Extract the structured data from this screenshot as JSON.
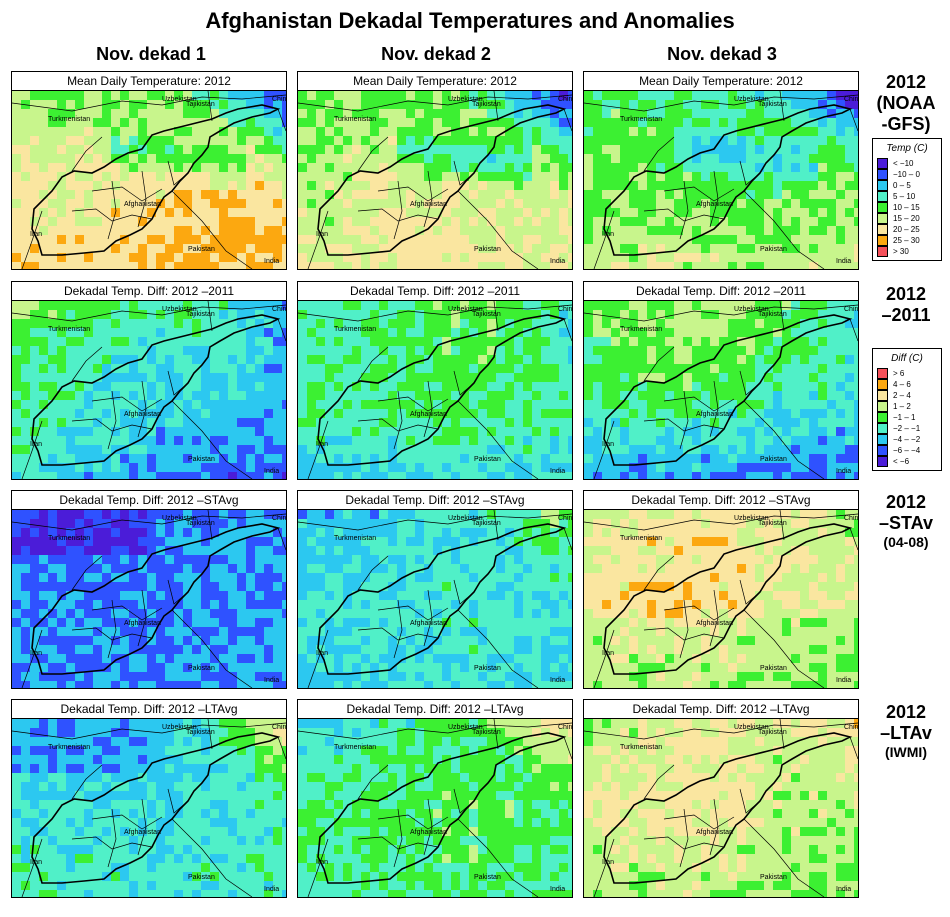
{
  "title": "Afghanistan Dekadal Temperatures and Anomalies",
  "columns": [
    "Nov. dekad 1",
    "Nov. dekad 2",
    "Nov. dekad 3"
  ],
  "rows": [
    {
      "label_big": [
        "2012",
        "(NOAA",
        "-GFS)"
      ],
      "label_small": [],
      "panel_title": "Mean Daily Temperature: 2012",
      "scheme": "temp",
      "fields": [
        "temp_d1",
        "temp_d2",
        "temp_d3"
      ]
    },
    {
      "label_big": [
        "2012",
        "–2011"
      ],
      "label_small": [],
      "panel_title": "Dekadal Temp. Diff:  2012 –2011",
      "scheme": "diff",
      "fields": [
        "d11_d1",
        "d11_d2",
        "d11_d3"
      ]
    },
    {
      "label_big": [
        "2012",
        "–STAv"
      ],
      "label_small": [
        "(04-08)"
      ],
      "panel_title": "Dekadal Temp. Diff:  2012 –STAvg",
      "scheme": "diff",
      "fields": [
        "dst_d1",
        "dst_d2",
        "dst_d3"
      ]
    },
    {
      "label_big": [
        "2012",
        "–LTAv"
      ],
      "label_small": [
        "(IWMI)"
      ],
      "panel_title": "Dekadal Temp. Diff:  2012 –LTAvg",
      "scheme": "diff",
      "fields": [
        "dlt_d1",
        "dlt_d2",
        "dlt_d3"
      ]
    }
  ],
  "map_labels": [
    "Uzbekistan",
    "Tajikistan",
    "China",
    "Turkmenistan",
    "Afghanistan",
    "Iran",
    "Pakistan",
    "India"
  ],
  "legend_temp": {
    "title": "Temp (C)",
    "items": [
      {
        "label": "< −10",
        "color": "#4b1cd8"
      },
      {
        "label": "−10 –  0",
        "color": "#2f52ff"
      },
      {
        "label": "0 –  5",
        "color": "#2cc8f0"
      },
      {
        "label": "5 – 10",
        "color": "#50f0c8"
      },
      {
        "label": "10 – 15",
        "color": "#3cf032"
      },
      {
        "label": "15 – 20",
        "color": "#c8f58c"
      },
      {
        "label": "20 – 25",
        "color": "#fae6a0"
      },
      {
        "label": "25 – 30",
        "color": "#fca810"
      },
      {
        "label": "> 30",
        "color": "#f5505a"
      }
    ]
  },
  "legend_diff": {
    "title": "Diff (C)",
    "items": [
      {
        "label": "> 6",
        "color": "#f5505a"
      },
      {
        "label": "4 – 6",
        "color": "#fca810"
      },
      {
        "label": "2 –  4",
        "color": "#fae6a0"
      },
      {
        "label": "1 –  2",
        "color": "#c8f58c"
      },
      {
        "label": "−1 –  1",
        "color": "#3cf032"
      },
      {
        "label": "−2 – −1",
        "color": "#50f0c8"
      },
      {
        "label": "−4 – −2",
        "color": "#2cc8f0"
      },
      {
        "label": "−6 – −4",
        "color": "#2f52ff"
      },
      {
        "label": "< −6",
        "color": "#4b1cd8"
      }
    ]
  }
}
